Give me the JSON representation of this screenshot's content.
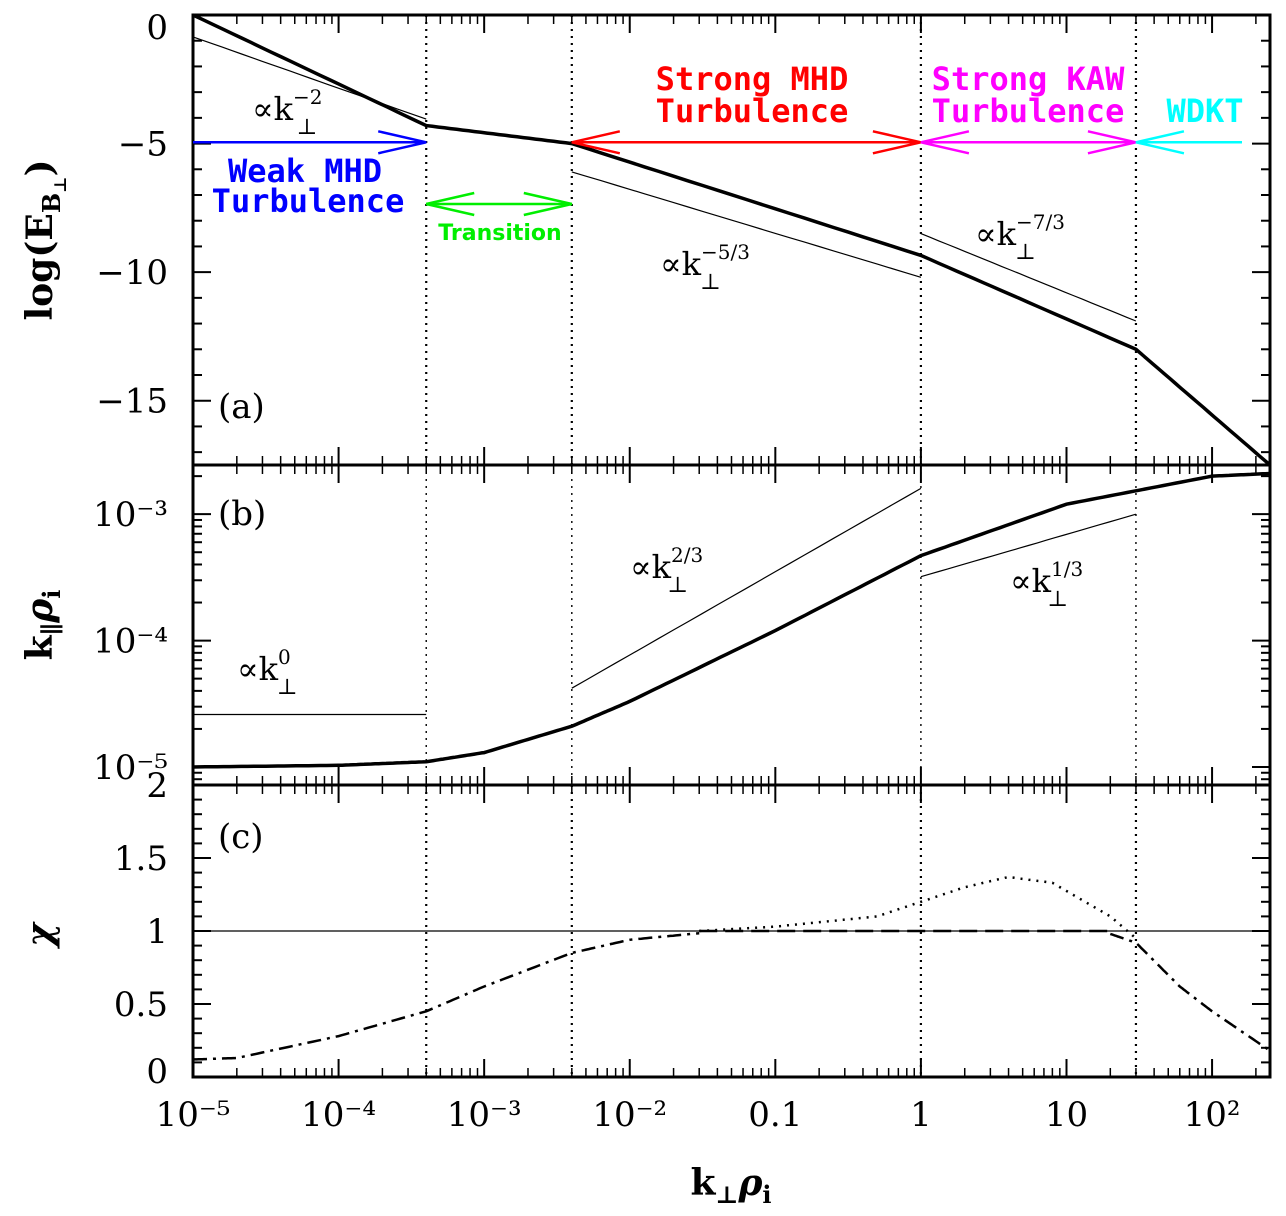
{
  "chart_data": [
    {
      "panel": "(a)",
      "type": "line",
      "ylabel": "log(E_B⊥)",
      "xscale": "log",
      "xlim": [
        1e-05,
        250
      ],
      "ylim": [
        -17.5,
        0
      ],
      "yticks": [
        0,
        -5,
        -10,
        -15
      ],
      "ytick_labels": [
        "0",
        "−5",
        "−10",
        "−15"
      ],
      "series": [
        {
          "style": "thick-solid",
          "x": [
            1e-05,
            0.0004,
            0.004,
            1,
            30,
            250
          ],
          "y": [
            0,
            -4.3,
            -5.0,
            -9.35,
            -13.0,
            -17.5
          ]
        }
      ],
      "reference_lines": [
        {
          "label": "∝k⊥^−2",
          "x": [
            1e-05,
            0.0004
          ],
          "y": [
            -0.85,
            -4.05
          ]
        },
        {
          "label": "∝k⊥^−5/3",
          "x": [
            0.004,
            1
          ],
          "y": [
            -6.1,
            -10.2
          ]
        },
        {
          "label": "∝k⊥^−7/3",
          "x": [
            1,
            30
          ],
          "y": [
            -8.5,
            -11.9
          ]
        }
      ],
      "regions": [
        {
          "label": "Weak MHD Turbulence",
          "color": "#0000ff",
          "x": [
            1e-05,
            0.0004
          ]
        },
        {
          "label": "Transition",
          "color": "#00ee00",
          "x": [
            0.0004,
            0.004
          ]
        },
        {
          "label": "Strong MHD Turbulence",
          "color": "#ff0000",
          "x": [
            0.004,
            1
          ]
        },
        {
          "label": "Strong KAW Turbulence",
          "color": "#ff00ff",
          "x": [
            1,
            30
          ]
        },
        {
          "label": "WDKT",
          "color": "#00ffff",
          "x": [
            30,
            250
          ]
        }
      ]
    },
    {
      "panel": "(b)",
      "type": "line",
      "ylabel": "k∥ρi",
      "xscale": "log",
      "yscale": "log",
      "ytick_labels": [
        "10⁻³",
        "10⁻⁴",
        "10⁻⁵"
      ],
      "series": [
        {
          "style": "thick-solid",
          "x": [
            1e-05,
            0.0001,
            0.0004,
            0.001,
            0.004,
            0.01,
            0.1,
            1,
            10,
            100,
            250
          ],
          "y": [
            1e-05,
            1.03e-05,
            1.1e-05,
            1.3e-05,
            2.1e-05,
            3.3e-05,
            0.00012,
            0.00047,
            0.0012,
            0.002,
            0.0021
          ]
        }
      ],
      "reference_lines": [
        {
          "label": "∝k⊥^0",
          "x": [
            1e-05,
            0.0004
          ],
          "y": [
            2.6e-05,
            2.6e-05
          ]
        },
        {
          "label": "∝k⊥^2/3",
          "x": [
            0.004,
            1
          ],
          "y": [
            4.2e-05,
            0.0016
          ]
        },
        {
          "label": "∝k⊥^1/3",
          "x": [
            1,
            30
          ],
          "y": [
            0.00032,
            0.001
          ]
        }
      ]
    },
    {
      "panel": "(c)",
      "type": "line",
      "ylabel": "χ",
      "xlabel": "k⊥ρi",
      "xscale": "log",
      "ylim": [
        0,
        2
      ],
      "yticks": [
        0,
        0.5,
        1,
        1.5,
        2
      ],
      "ytick_labels": [
        "0",
        "0.5",
        "1",
        "1.5",
        "2"
      ],
      "xtick_labels": [
        "10⁻⁵",
        "10⁻⁴",
        "10⁻³",
        "10⁻²",
        "0.1",
        "1",
        "10",
        "10²"
      ],
      "series": [
        {
          "style": "dash-dot",
          "x": [
            1e-05,
            2e-05,
            0.0001,
            0.0004,
            0.001,
            0.004,
            0.01,
            0.03
          ],
          "y": [
            0.12,
            0.13,
            0.28,
            0.45,
            0.62,
            0.85,
            0.94,
            0.985
          ]
        },
        {
          "style": "dotted",
          "x": [
            0.03,
            0.1,
            0.5,
            1,
            2,
            4,
            8,
            20,
            30
          ],
          "y": [
            1.0,
            1.03,
            1.1,
            1.2,
            1.3,
            1.37,
            1.33,
            1.1,
            0.95
          ]
        },
        {
          "style": "long-dash",
          "x": [
            0.03,
            1,
            20
          ],
          "y": [
            1.0,
            1.0,
            1.0
          ]
        },
        {
          "style": "dash-dot",
          "x": [
            20,
            30,
            60,
            100,
            250
          ],
          "y": [
            0.98,
            0.92,
            0.62,
            0.45,
            0.18
          ]
        }
      ],
      "reference_lines": [
        {
          "label": "",
          "x": [
            1e-05,
            250
          ],
          "y": [
            1,
            1
          ]
        }
      ]
    }
  ],
  "labels": {
    "panel_a": "(a)",
    "panel_b": "(b)",
    "panel_c": "(c)",
    "ylabel_a": "log(E",
    "ylabel_a_sub": "B",
    "ylabel_a_subsub": "⊥",
    "ylabel_a_end": ")",
    "ylabel_b": "k",
    "ylabel_b_sub": "∥",
    "ylabel_b_mid": "ρ",
    "ylabel_b_sub2": "i",
    "ylabel_c": "χ",
    "xlabel": "k",
    "xlabel_sub": "⊥",
    "xlabel_mid": "ρ",
    "xlabel_sub2": "i",
    "prop": "∝k",
    "perp": "⊥",
    "exp_a1": "−2",
    "exp_a2": "−5/3",
    "exp_a3": "−7/3",
    "exp_b1": "0",
    "exp_b2": "2/3",
    "exp_b3": "1/3",
    "weak_1": "Weak MHD",
    "weak_2": "Turbulence",
    "transition": "Transition",
    "strong_mhd_1": "Strong MHD",
    "strong_mhd_2": "Turbulence",
    "strong_kaw_1": "Strong KAW",
    "strong_kaw_2": "Turbulence",
    "wdkt": "WDKT"
  },
  "colors": {
    "weak": "#0000ff",
    "transition": "#00ee00",
    "strong_mhd": "#ff0000",
    "strong_kaw": "#ff00ff",
    "wdkt": "#00ffff",
    "ink": "#000000"
  }
}
